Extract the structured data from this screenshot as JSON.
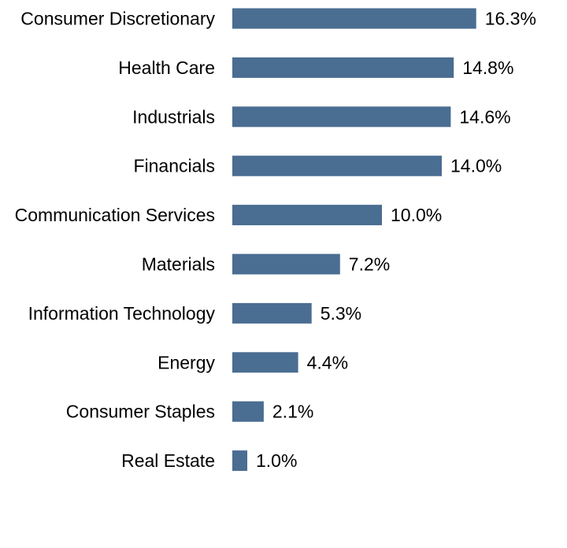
{
  "chart_data": {
    "type": "bar",
    "orientation": "horizontal",
    "title": "",
    "xlabel": "",
    "ylabel": "",
    "categories": [
      "Consumer Discretionary",
      "Health Care",
      "Industrials",
      "Financials",
      "Communication Services",
      "Materials",
      "Information Technology",
      "Energy",
      "Consumer Staples",
      "Real Estate"
    ],
    "values": [
      16.3,
      14.8,
      14.6,
      14.0,
      10.0,
      7.2,
      5.3,
      4.4,
      2.1,
      1.0
    ],
    "value_labels": [
      "16.3%",
      "14.8%",
      "14.6%",
      "14.0%",
      "10.0%",
      "7.2%",
      "5.3%",
      "4.4%",
      "2.1%",
      "1.0%"
    ],
    "unit": "%",
    "bar_color": "#4a6d92",
    "grid": false,
    "legend": "none"
  }
}
